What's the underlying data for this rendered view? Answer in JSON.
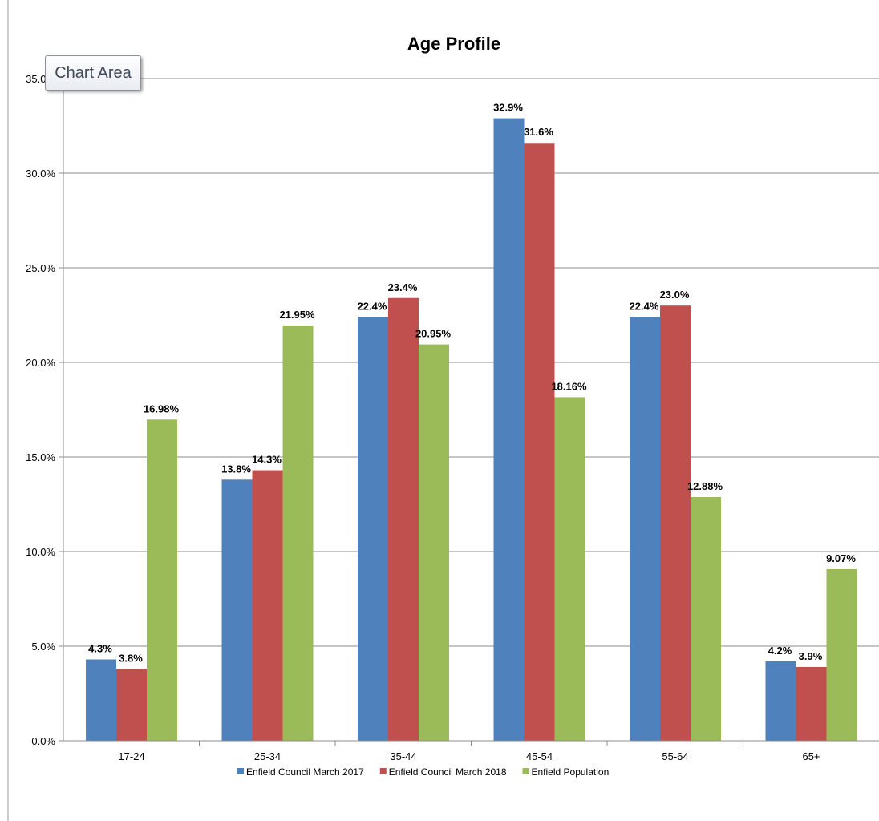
{
  "tooltip": {
    "label": "Chart Area"
  },
  "chart_data": {
    "type": "bar",
    "title": "Age Profile",
    "xlabel": "",
    "ylabel": "",
    "ylim": [
      0,
      35
    ],
    "y_ticks": [
      "0.0%",
      "5.0%",
      "10.0%",
      "15.0%",
      "20.0%",
      "25.0%",
      "30.0%",
      "35.0%"
    ],
    "grid": true,
    "legend_position": "bottom",
    "categories": [
      "17-24",
      "25-34",
      "35-44",
      "45-54",
      "55-64",
      "65+"
    ],
    "series": [
      {
        "name": "Enfield Council March 2017",
        "color": "#4f81bd",
        "values": [
          4.3,
          13.8,
          22.4,
          32.9,
          22.4,
          4.2
        ],
        "labels": [
          "4.3%",
          "13.8%",
          "22.4%",
          "32.9%",
          "22.4%",
          "4.2%"
        ]
      },
      {
        "name": "Enfield Council March 2018",
        "color": "#c0504d",
        "values": [
          3.8,
          14.3,
          23.4,
          31.6,
          23.0,
          3.9
        ],
        "labels": [
          "3.8%",
          "14.3%",
          "23.4%",
          "31.6%",
          "23.0%",
          "3.9%"
        ]
      },
      {
        "name": "Enfield Population",
        "color": "#9bbb59",
        "values": [
          16.98,
          21.95,
          20.95,
          18.16,
          12.88,
          9.07
        ],
        "labels": [
          "16.98%",
          "21.95%",
          "20.95%",
          "18.16%",
          "12.88%",
          "9.07%"
        ]
      }
    ]
  }
}
